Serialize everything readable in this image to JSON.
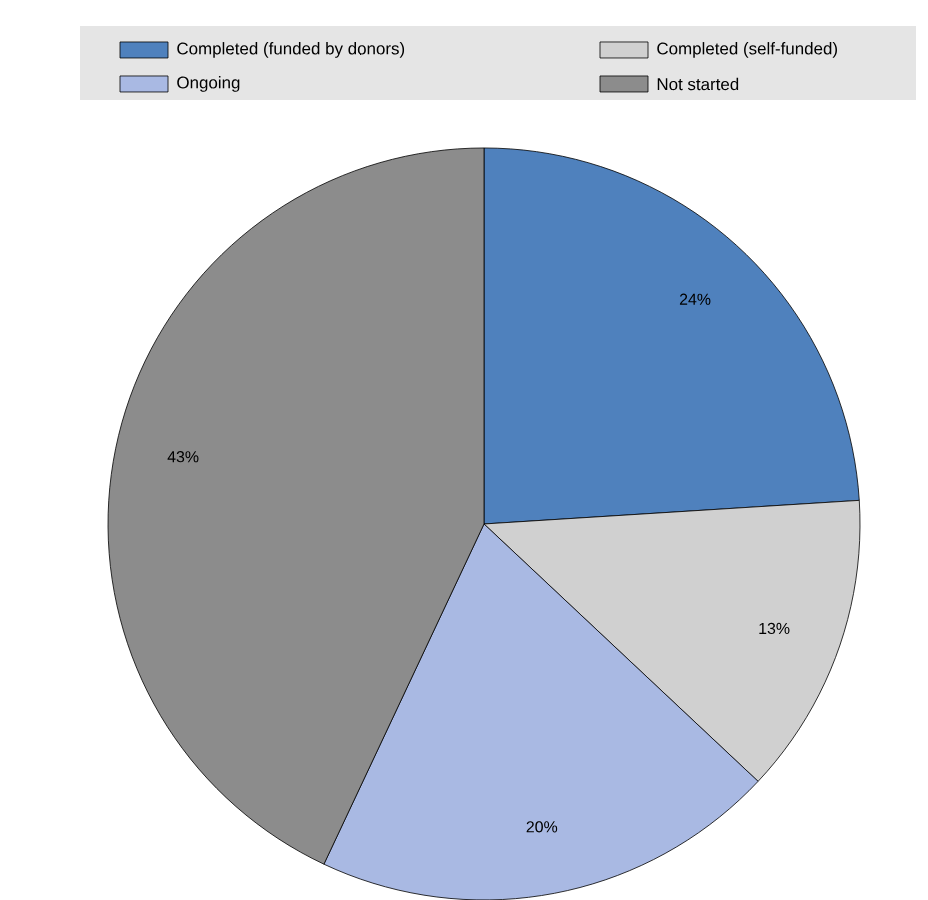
{
  "chart_data": {
    "type": "pie",
    "categories": [
      "Completed (funded by donors)",
      "Completed (self-funded)",
      "Ongoing",
      "Not started"
    ],
    "values": [
      24,
      13,
      20,
      43
    ],
    "value_labels": [
      "24%",
      "13%",
      "20%",
      "43%"
    ],
    "colors": [
      "#4f81bd",
      "#d0d0d0",
      "#a9b9e3",
      "#8c8c8c"
    ],
    "legend": "top"
  }
}
